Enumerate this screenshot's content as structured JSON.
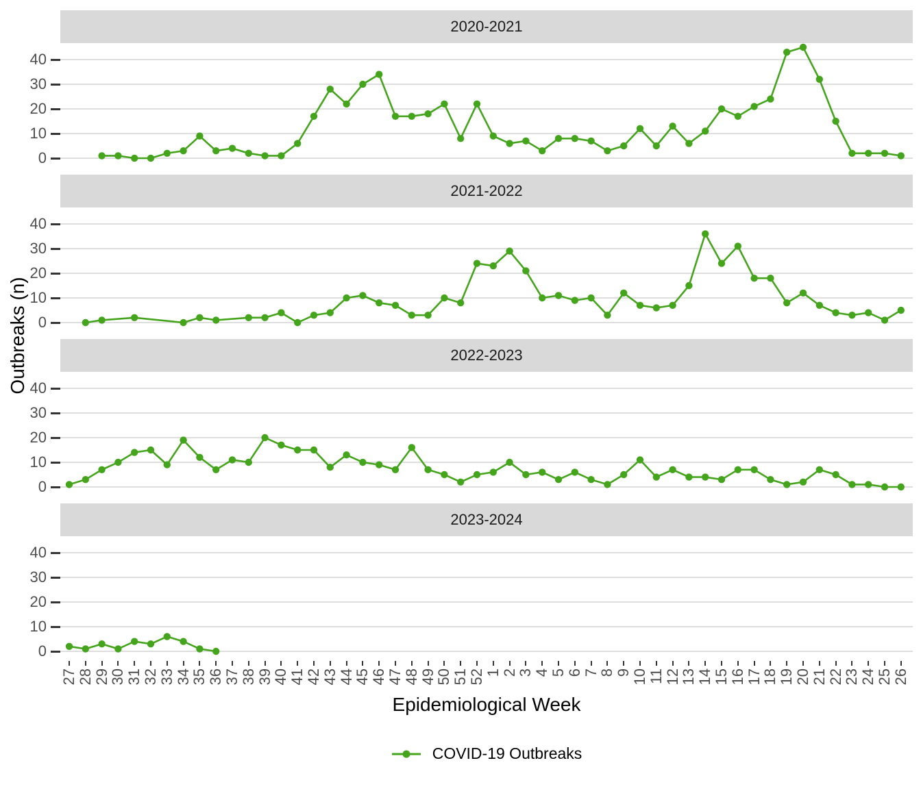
{
  "colors": {
    "line": "#44a51c",
    "strip_bg": "#d9d9d9",
    "grid": "#dedede",
    "axis_text": "#4d4d4d",
    "tick_mark": "#333333"
  },
  "legend": {
    "label": "COVID-19 Outbreaks"
  },
  "chart_data": {
    "type": "line",
    "title": "",
    "xlabel": "Epidemiological Week",
    "ylabel": "Outbreaks (n)",
    "ylim": [
      0,
      45
    ],
    "yticks": [
      0,
      10,
      20,
      30,
      40
    ],
    "grid": "horizontal-major-only",
    "legend_position": "bottom",
    "legend_label": "COVID-19 Outbreaks",
    "facets": "one panel per season, shared x and y axes",
    "categories": [
      "27",
      "28",
      "29",
      "30",
      "31",
      "32",
      "33",
      "34",
      "35",
      "36",
      "37",
      "38",
      "39",
      "40",
      "41",
      "42",
      "43",
      "44",
      "45",
      "46",
      "47",
      "48",
      "49",
      "50",
      "51",
      "52",
      "1",
      "2",
      "3",
      "4",
      "5",
      "6",
      "7",
      "8",
      "9",
      "10",
      "11",
      "12",
      "13",
      "14",
      "15",
      "16",
      "17",
      "18",
      "19",
      "20",
      "21",
      "22",
      "23",
      "24",
      "25",
      "26"
    ],
    "series": [
      {
        "name": "2020-2021",
        "values": [
          null,
          null,
          1,
          1,
          0,
          0,
          2,
          3,
          9,
          3,
          4,
          2,
          1,
          1,
          6,
          17,
          28,
          22,
          30,
          34,
          17,
          17,
          18,
          22,
          8,
          22,
          9,
          6,
          7,
          3,
          8,
          8,
          7,
          3,
          5,
          12,
          5,
          13,
          6,
          11,
          20,
          17,
          21,
          24,
          43,
          45,
          32,
          15,
          2,
          2,
          2,
          1
        ]
      },
      {
        "name": "2021-2022",
        "values": [
          null,
          0,
          1,
          null,
          2,
          null,
          null,
          0,
          2,
          1,
          null,
          2,
          2,
          4,
          0,
          3,
          4,
          10,
          11,
          8,
          7,
          3,
          3,
          10,
          8,
          24,
          23,
          29,
          21,
          10,
          11,
          9,
          10,
          3,
          12,
          7,
          6,
          7,
          15,
          36,
          24,
          31,
          18,
          18,
          8,
          12,
          7,
          4,
          3,
          4,
          1,
          5
        ]
      },
      {
        "name": "2022-2023",
        "values": [
          1,
          3,
          7,
          10,
          14,
          15,
          9,
          19,
          12,
          7,
          11,
          10,
          20,
          17,
          15,
          15,
          8,
          13,
          10,
          9,
          7,
          16,
          7,
          5,
          2,
          5,
          6,
          10,
          5,
          6,
          3,
          6,
          3,
          1,
          5,
          11,
          4,
          7,
          4,
          4,
          3,
          7,
          7,
          3,
          1,
          2,
          7,
          5,
          1,
          1,
          0,
          0
        ]
      },
      {
        "name": "2023-2024",
        "values": [
          2,
          1,
          3,
          1,
          4,
          3,
          6,
          4,
          1,
          0,
          null,
          null,
          null,
          null,
          null,
          null,
          null,
          null,
          null,
          null,
          null,
          null,
          null,
          null,
          null,
          null,
          null,
          null,
          null,
          null,
          null,
          null,
          null,
          null,
          null,
          null,
          null,
          null,
          null,
          null,
          null,
          null,
          null,
          null,
          null,
          null,
          null,
          null,
          null,
          null,
          null,
          null
        ]
      }
    ]
  }
}
